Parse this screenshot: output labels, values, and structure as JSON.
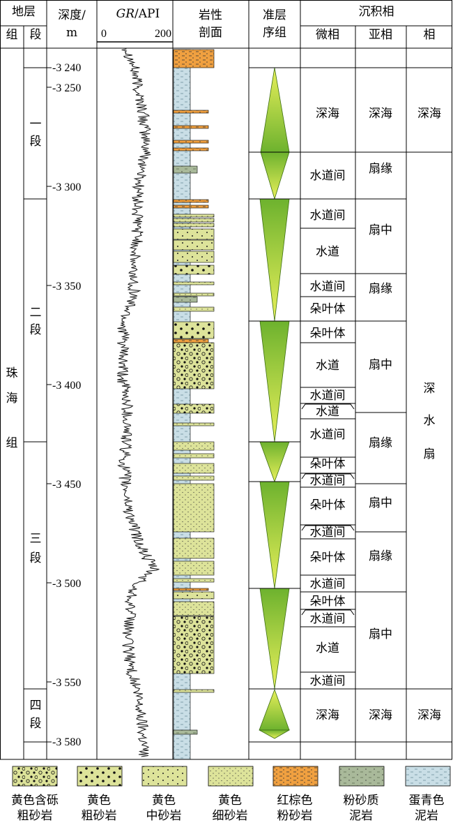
{
  "headers": {
    "strata": "地层",
    "formation": "组",
    "member": "段",
    "depth": "深度/",
    "depth_unit": "m",
    "gr_italic": "GR",
    "gr_unit": "/API",
    "gr_min": "0",
    "gr_max": "200",
    "lith_l1": "岩性",
    "lith_l2": "剖面",
    "seq_l1": "准层",
    "seq_l2": "序组",
    "facies_group": "沉积相",
    "microfacies": "微相",
    "subfacies": "亚相",
    "facies": "相"
  },
  "formation": [
    "珠",
    "海",
    "组"
  ],
  "members": [
    {
      "chars": [
        "一",
        "段"
      ]
    },
    {
      "chars": [
        "二",
        "段"
      ]
    },
    {
      "chars": [
        "三",
        "段"
      ]
    },
    {
      "chars": [
        "四",
        "段"
      ]
    }
  ],
  "depth_ticks": [
    {
      "depth": 3240,
      "label": "-3 240"
    },
    {
      "depth": 3250,
      "label": "-3 250"
    },
    {
      "depth": 3300,
      "label": "-3 300"
    },
    {
      "depth": 3350,
      "label": "-3 350"
    },
    {
      "depth": 3400,
      "label": "-3 400"
    },
    {
      "depth": 3450,
      "label": "-3 450"
    },
    {
      "depth": 3500,
      "label": "-3 500"
    },
    {
      "depth": 3550,
      "label": "-3 550"
    },
    {
      "depth": 3580,
      "label": "-3 580"
    }
  ],
  "microfacies": [
    {
      "label": "深海"
    },
    {
      "label": "水道间"
    },
    {
      "label": "水道间"
    },
    {
      "label": "水道"
    },
    {
      "label": "水道间"
    },
    {
      "label": "朵叶体"
    },
    {
      "label": "朵叶体"
    },
    {
      "label": "水道"
    },
    {
      "label": "水道间"
    },
    {
      "label": "水道"
    },
    {
      "label": "水道间"
    },
    {
      "label": "朵叶体"
    },
    {
      "label": "水道间"
    },
    {
      "label": "朵叶体"
    },
    {
      "label": "水道间"
    },
    {
      "label": "朵叶体"
    },
    {
      "label": "水道间"
    },
    {
      "label": "朵叶体"
    },
    {
      "label": "水道间"
    },
    {
      "label": "水道"
    },
    {
      "label": "水道间"
    },
    {
      "label": "深海"
    }
  ],
  "subfacies": [
    {
      "label": "深海"
    },
    {
      "label": "扇缘"
    },
    {
      "label": "扇中"
    },
    {
      "label": "扇缘"
    },
    {
      "label": "扇中"
    },
    {
      "label": "扇缘"
    },
    {
      "label": "扇中"
    },
    {
      "label": "扇缘"
    },
    {
      "label": "扇中"
    },
    {
      "label": "深海"
    }
  ],
  "facies": [
    {
      "chars": [
        "深海"
      ]
    },
    {
      "chars": [
        "深",
        "水",
        "扇"
      ]
    },
    {
      "chars": [
        "深海"
      ]
    }
  ],
  "legend": [
    {
      "l1": "黄色含砾",
      "l2": "粗砂岩",
      "color": "#DDE39A",
      "pattern": "gravel"
    },
    {
      "l1": "黄色",
      "l2": "粗砂岩",
      "color": "#DDE39A",
      "pattern": "coarse"
    },
    {
      "l1": "黄色",
      "l2": "中砂岩",
      "color": "#DDE39A",
      "pattern": "medium"
    },
    {
      "l1": "黄色",
      "l2": "细砂岩",
      "color": "#DDE39A",
      "pattern": "fine"
    },
    {
      "l1": "红棕色",
      "l2": "粉砂岩",
      "color": "#F0A040",
      "pattern": "silt"
    },
    {
      "l1": "粉砂质",
      "l2": "泥岩",
      "color": "#A9B99A",
      "pattern": "siltymud"
    },
    {
      "l1": "蛋青色",
      "l2": "泥岩",
      "color": "#C9DEE6",
      "pattern": "mud"
    }
  ],
  "colors": {
    "sandstone": "#DDE39A",
    "siltstone": "#F0A040",
    "silty_mudstone": "#A9B99A",
    "mudstone": "#C9DEE6",
    "sequence_dark": "#6DB22E",
    "sequence_light": "#E8F05A"
  }
}
